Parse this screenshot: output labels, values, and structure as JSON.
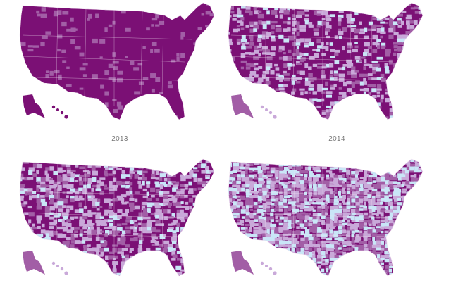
{
  "maps": [
    {
      "id": "map-2013",
      "year_label": "2013",
      "lightness": 0.03
    },
    {
      "id": "map-2014",
      "year_label": "2014",
      "lightness": 0.42
    },
    {
      "id": "map-2015",
      "year_label": "",
      "lightness": 0.55
    },
    {
      "id": "map-2016",
      "year_label": "",
      "lightness": 0.72
    }
  ],
  "colors": {
    "dark": "#7b1075",
    "medium": "#a25ea6",
    "light": "#c9a9d9",
    "palest": "#c9e6f7",
    "border": "#f2e6f3",
    "label": "#777777"
  }
}
